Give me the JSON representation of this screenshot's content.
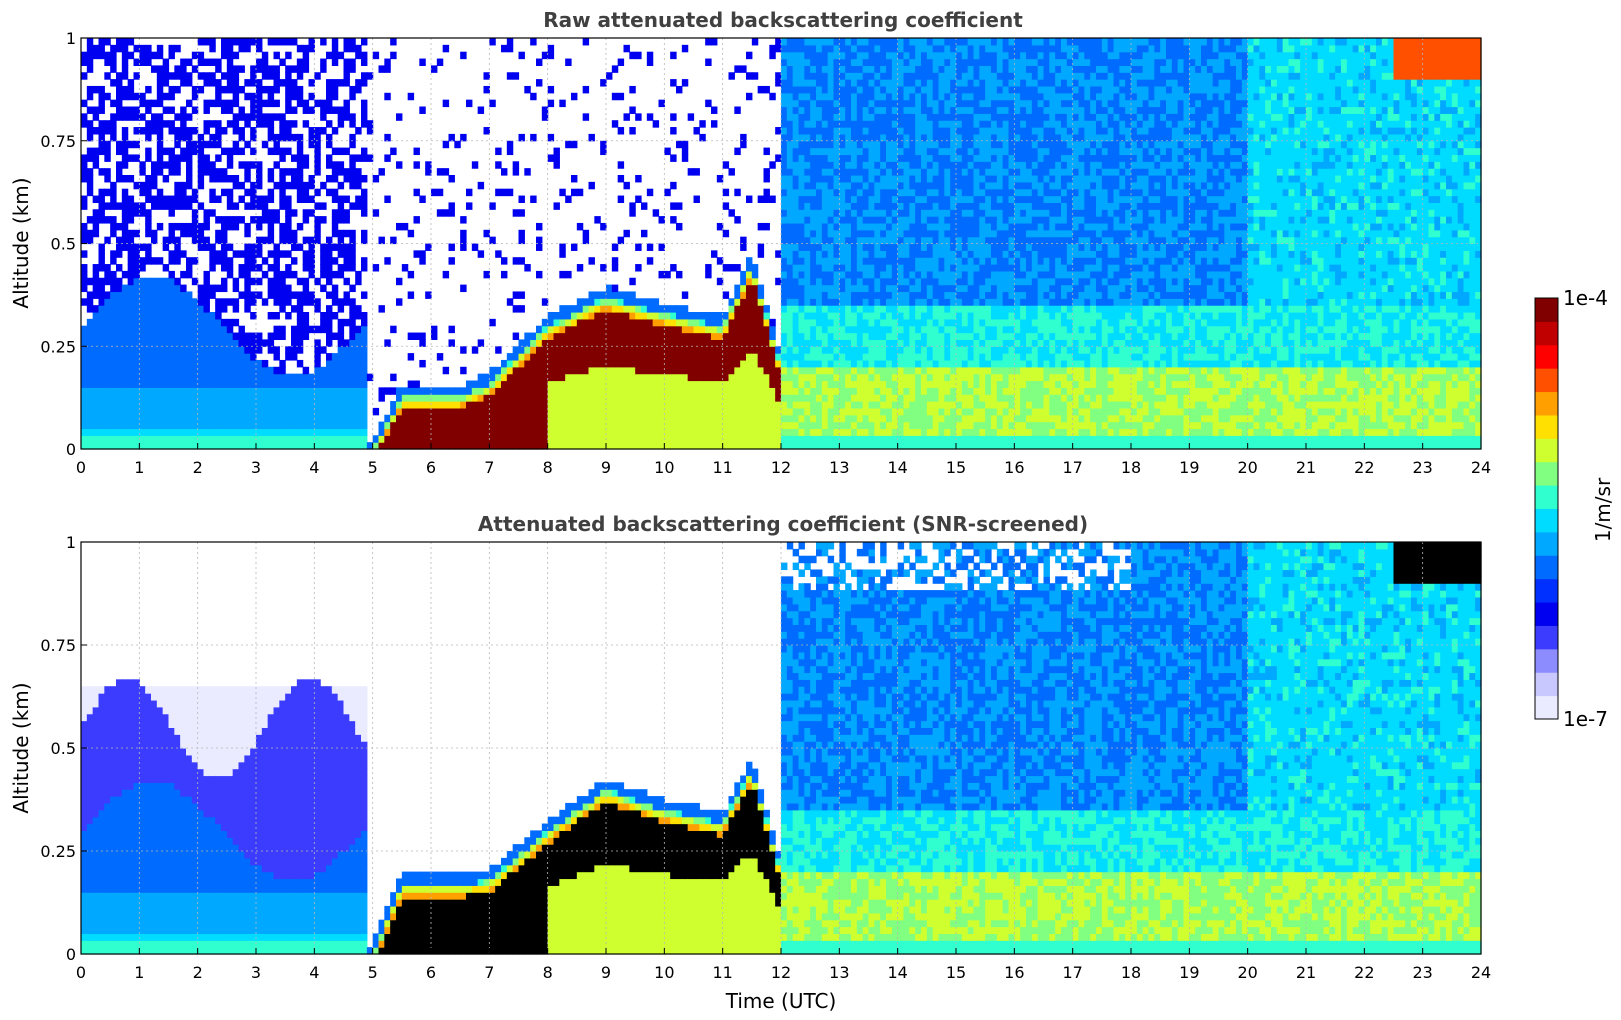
{
  "colors": {
    "colormap": [
      "#ebebff",
      "#c8c8ff",
      "#8c8cff",
      "#3c3cff",
      "#0000f0",
      "#0030ff",
      "#006cff",
      "#00a8ff",
      "#00dcff",
      "#30ffd0",
      "#80ff80",
      "#d0ff30",
      "#ffe000",
      "#ffa000",
      "#ff5000",
      "#ff0000",
      "#c00000",
      "#800000"
    ],
    "saturated_raw": "#800000",
    "saturated_screened": "#000000"
  },
  "chart_data": [
    {
      "type": "heatmap",
      "title": "Raw attenuated backscattering coefficient",
      "xlabel": "",
      "ylabel": "Altitude (km)",
      "xlim": [
        0,
        24
      ],
      "ylim": [
        0,
        1
      ],
      "xticks": [
        "0",
        "1",
        "2",
        "3",
        "4",
        "5",
        "6",
        "7",
        "8",
        "9",
        "10",
        "11",
        "12",
        "13",
        "14",
        "15",
        "16",
        "17",
        "18",
        "19",
        "20",
        "21",
        "22",
        "23",
        "24"
      ],
      "yticks": [
        "0",
        "0.25",
        "0.5",
        "0.75",
        "1"
      ],
      "grid": true,
      "layer_top_km": [
        [
          0,
          0
        ],
        [
          5,
          0
        ],
        [
          5.5,
          0.13
        ],
        [
          6.5,
          0.13
        ],
        [
          7,
          0.16
        ],
        [
          8,
          0.3
        ],
        [
          9,
          0.37
        ],
        [
          10,
          0.33
        ],
        [
          11,
          0.3
        ],
        [
          11.5,
          0.45
        ],
        [
          11.8,
          0.3
        ],
        [
          12,
          0.2
        ]
      ]
    },
    {
      "type": "heatmap",
      "title": "Attenuated backscattering coefficient (SNR-screened)",
      "xlabel": "Time (UTC)",
      "ylabel": "Altitude (km)",
      "xlim": [
        0,
        24
      ],
      "ylim": [
        0,
        1
      ],
      "xticks": [
        "0",
        "1",
        "2",
        "3",
        "4",
        "5",
        "6",
        "7",
        "8",
        "9",
        "10",
        "11",
        "12",
        "13",
        "14",
        "15",
        "16",
        "17",
        "18",
        "19",
        "20",
        "21",
        "22",
        "23",
        "24"
      ],
      "yticks": [
        "0",
        "0.25",
        "0.5",
        "0.75",
        "1"
      ],
      "grid": true,
      "layer_top_km": [
        [
          0,
          0
        ],
        [
          5,
          0
        ],
        [
          5.5,
          0.17
        ],
        [
          6.5,
          0.17
        ],
        [
          7,
          0.18
        ],
        [
          8,
          0.3
        ],
        [
          9,
          0.4
        ],
        [
          10,
          0.35
        ],
        [
          11,
          0.32
        ],
        [
          11.5,
          0.45
        ],
        [
          11.8,
          0.3
        ],
        [
          12,
          0.2
        ]
      ]
    }
  ],
  "colorbar": {
    "label": "1/m/sr",
    "max_label": "1e-4",
    "min_label": "1e-7",
    "scale": "log",
    "range": [
      1e-07,
      0.0001
    ]
  }
}
